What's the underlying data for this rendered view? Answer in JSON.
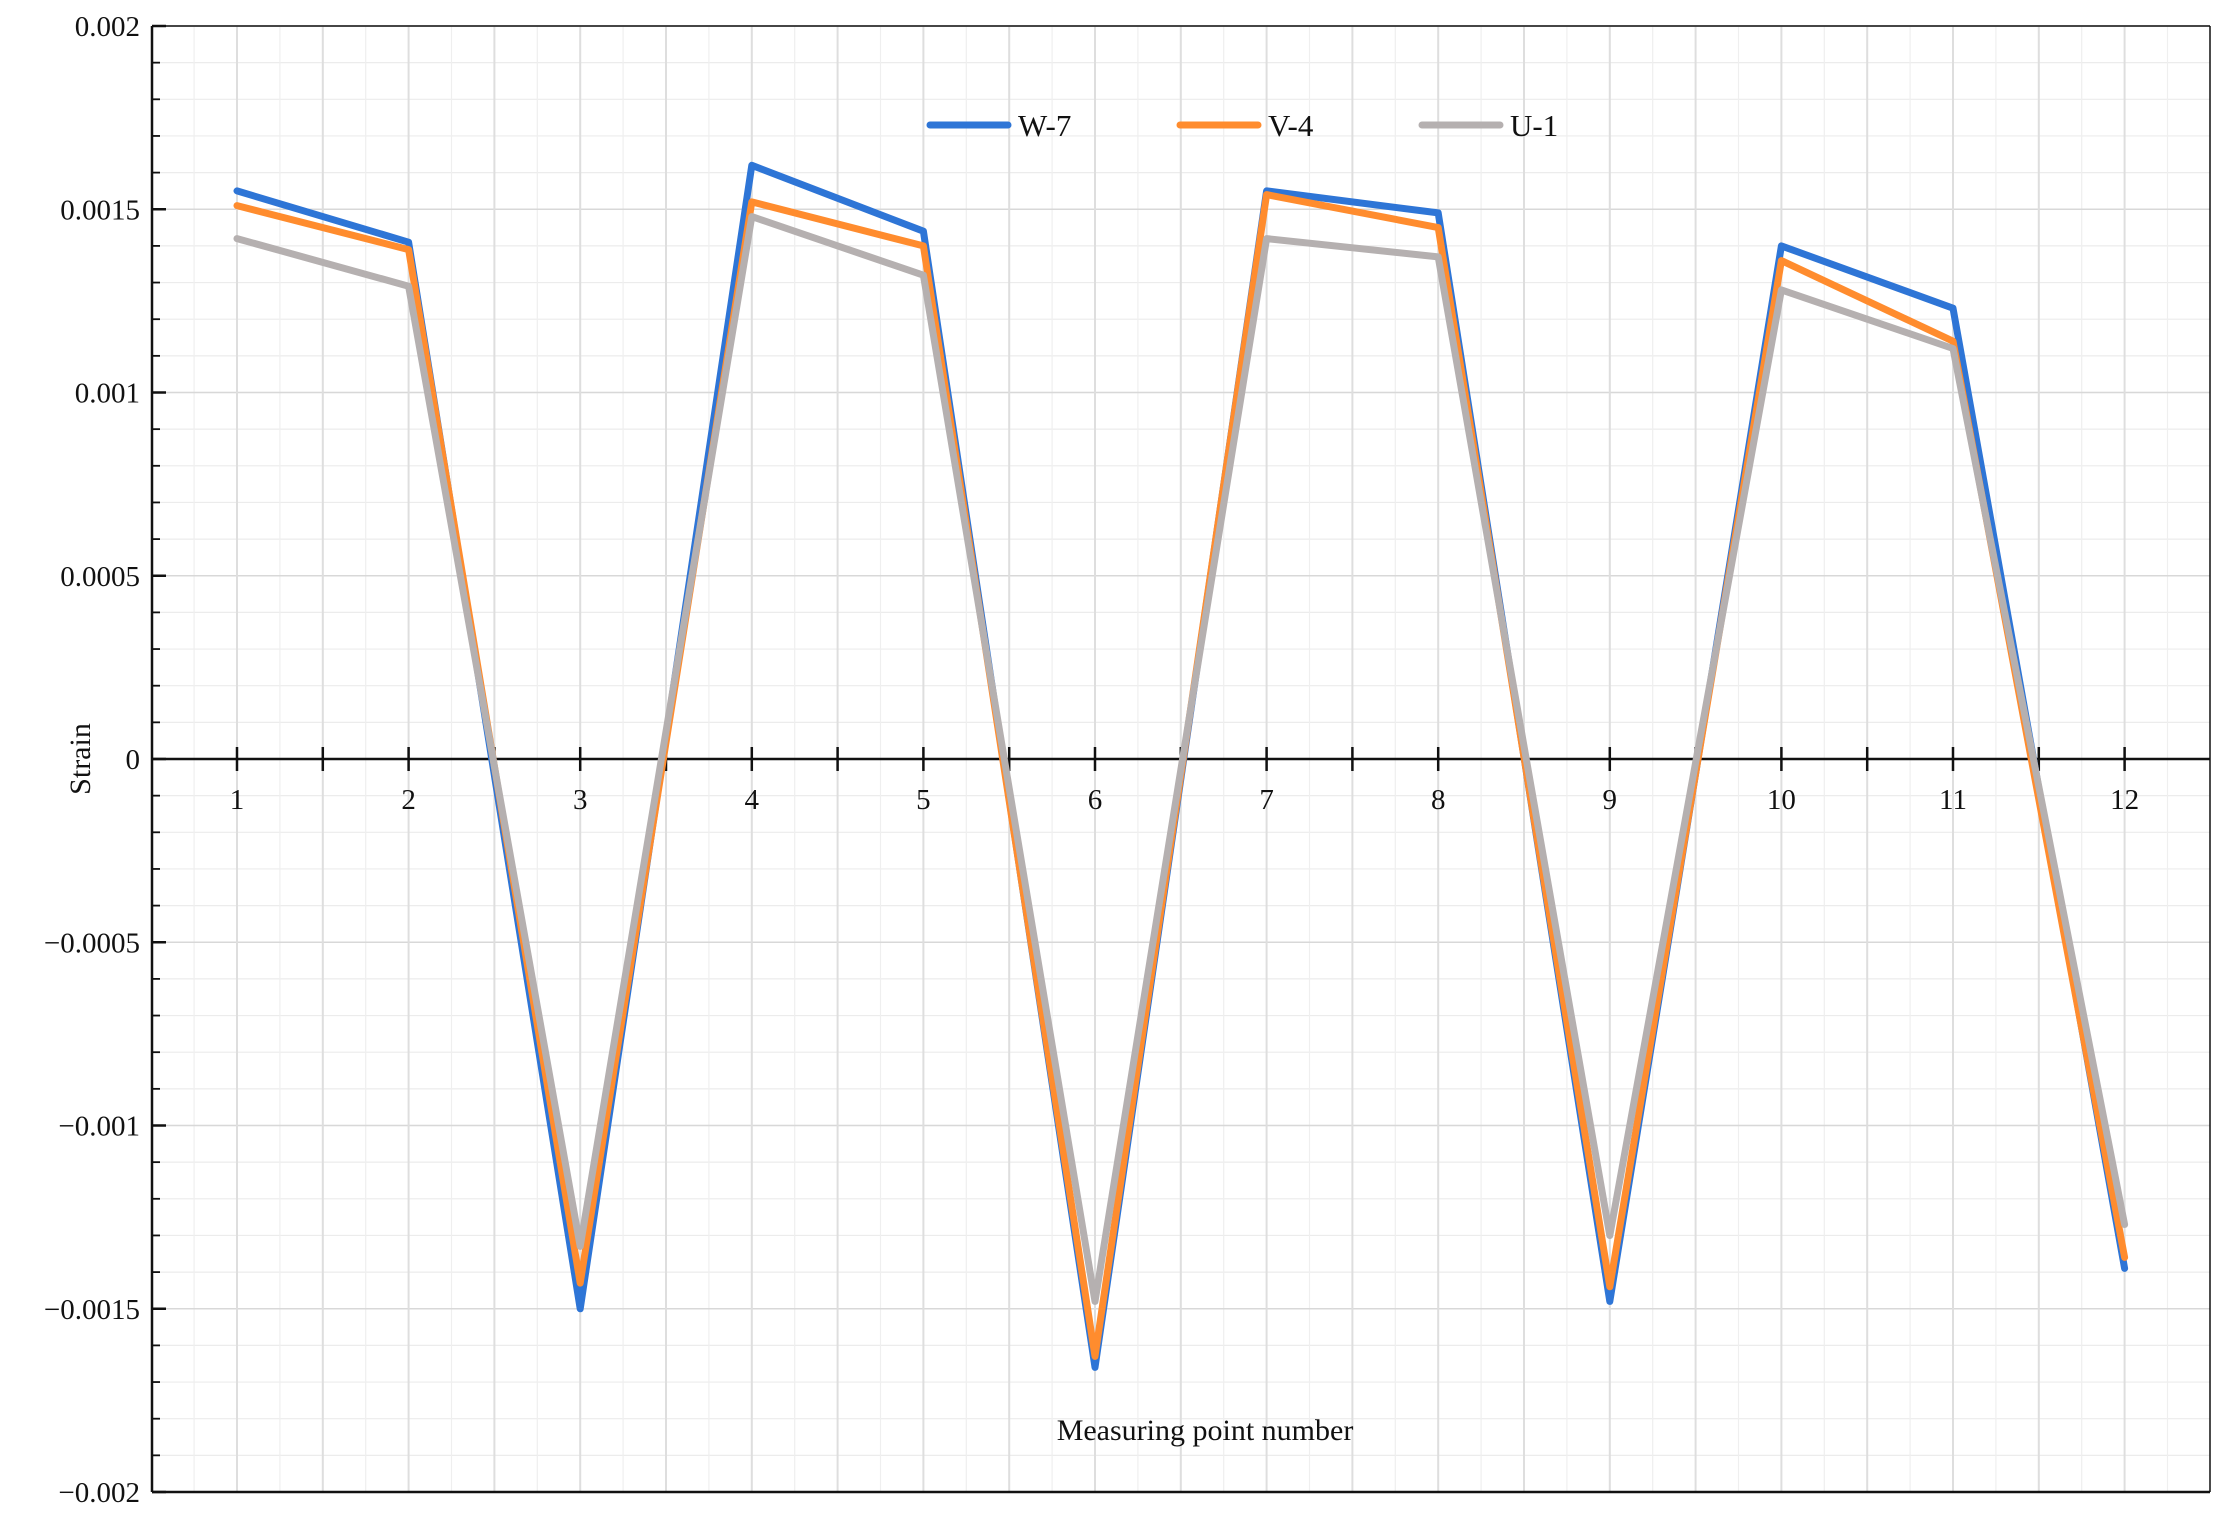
{
  "chart_data": {
    "type": "line",
    "title": "",
    "xlabel": "Measuring point number",
    "ylabel": "Strain",
    "categories": [
      "1",
      "2",
      "3",
      "4",
      "5",
      "6",
      "7",
      "8",
      "9",
      "10",
      "11",
      "12"
    ],
    "ylim": [
      -0.002,
      0.002
    ],
    "y_ticks": [
      "0.002",
      "0.0015",
      "0.001",
      "0.0005",
      "0",
      "−0.0005",
      "−0.001",
      "−0.0015",
      "−0.002"
    ],
    "y_tick_values": [
      0.002,
      0.0015,
      0.001,
      0.0005,
      0,
      -0.0005,
      -0.001,
      -0.0015,
      -0.002
    ],
    "grid": true,
    "legend_position": "top-center",
    "series": [
      {
        "name": "W-7",
        "color": "#2E75D6",
        "values": [
          0.00155,
          0.00141,
          -0.0015,
          0.00162,
          0.00144,
          -0.00166,
          0.00155,
          0.00149,
          -0.00148,
          0.0014,
          0.00123,
          -0.00139
        ]
      },
      {
        "name": "V-4",
        "color": "#FF8C2E",
        "values": [
          0.00151,
          0.00139,
          -0.00143,
          0.00152,
          0.0014,
          -0.00163,
          0.00154,
          0.00145,
          -0.00144,
          0.00136,
          0.00114,
          -0.00136
        ]
      },
      {
        "name": "U-1",
        "color": "#B5B0B0",
        "values": [
          0.00142,
          0.00129,
          -0.00133,
          0.00148,
          0.00132,
          -0.00148,
          0.00142,
          0.00137,
          -0.0013,
          0.00128,
          0.00112,
          -0.00127
        ]
      }
    ]
  }
}
